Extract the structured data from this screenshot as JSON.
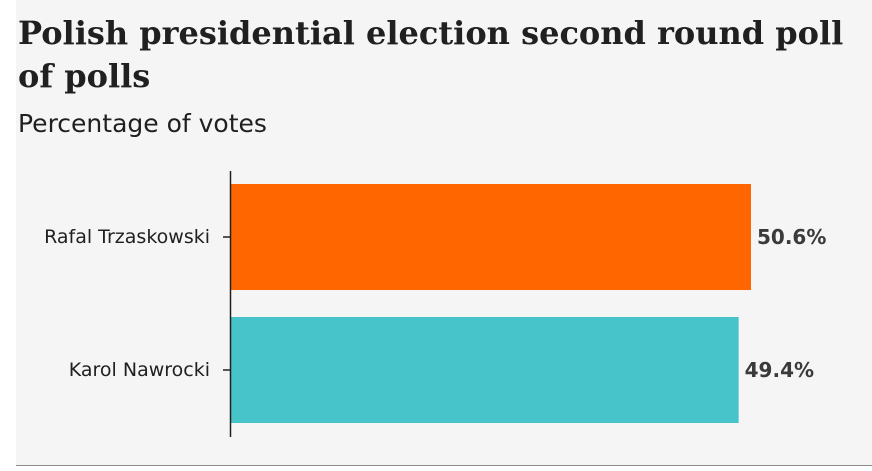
{
  "title": "Polish presidential election second round poll of polls",
  "subtitle": "Percentage of votes",
  "chart_data": {
    "type": "bar",
    "orientation": "horizontal",
    "title": "Polish presidential election second round poll of polls",
    "subtitle": "Percentage of votes",
    "categories": [
      "Rafal Trzaskowski",
      "Karol Nawrocki"
    ],
    "values": [
      50.6,
      49.4
    ],
    "value_labels": [
      "50.6%",
      "49.4%"
    ],
    "colors": [
      "#ff6600",
      "#47c4c9"
    ],
    "unit": "%",
    "xlim": [
      0,
      52
    ],
    "grid": false,
    "legend": "none"
  }
}
